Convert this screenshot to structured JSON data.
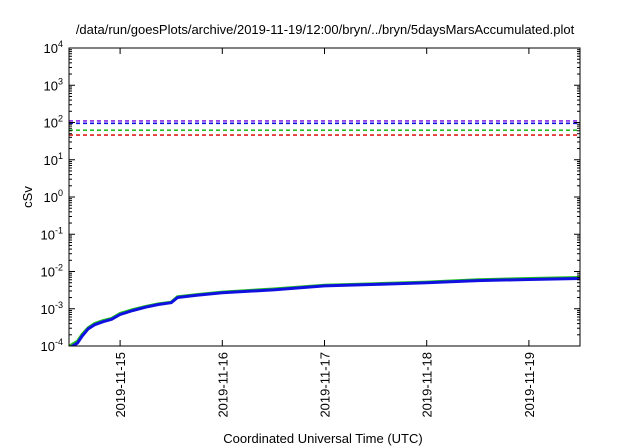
{
  "chart_data": {
    "type": "line",
    "title": "/data/run/goesPlots/archive/2019-11-19/12:00/bryn/../bryn/5daysMarsAccumulated.plot",
    "xlabel": "Coordinated Universal Time (UTC)",
    "ylabel": "cSv",
    "y_scale": "log",
    "ylim": [
      0.0001,
      10000
    ],
    "y_ticks": [
      {
        "value": 0.0001,
        "base": "10",
        "exp": "-4"
      },
      {
        "value": 0.001,
        "base": "10",
        "exp": "-3"
      },
      {
        "value": 0.01,
        "base": "10",
        "exp": "-2"
      },
      {
        "value": 0.1,
        "base": "10",
        "exp": "-1"
      },
      {
        "value": 1,
        "base": "10",
        "exp": "0"
      },
      {
        "value": 10,
        "base": "10",
        "exp": "1"
      },
      {
        "value": 100,
        "base": "10",
        "exp": "2"
      },
      {
        "value": 1000,
        "base": "10",
        "exp": "3"
      },
      {
        "value": 10000,
        "base": "10",
        "exp": "4"
      }
    ],
    "xlim": [
      "2019-11-14T12:00",
      "2019-11-19T12:00"
    ],
    "x_ticks": [
      {
        "value": "2019-11-15T00:00",
        "label": "2019-11-15"
      },
      {
        "value": "2019-11-16T00:00",
        "label": "2019-11-16"
      },
      {
        "value": "2019-11-17T00:00",
        "label": "2019-11-17"
      },
      {
        "value": "2019-11-18T00:00",
        "label": "2019-11-18"
      },
      {
        "value": "2019-11-19T00:00",
        "label": "2019-11-19"
      }
    ],
    "grid": false,
    "legend": "none",
    "thresholds": [
      {
        "value": 110,
        "color": "#8a2be2",
        "style": "dashed"
      },
      {
        "value": 95,
        "color": "#1010e0",
        "style": "dashed"
      },
      {
        "value": 62,
        "color": "#20c020",
        "style": "dashed"
      },
      {
        "value": 46,
        "color": "#e02020",
        "style": "dashed"
      }
    ],
    "series": [
      {
        "color": "#20c020",
        "points": [
          [
            "2019-11-14T12:10",
            0.0001
          ],
          [
            "2019-11-14T14:00",
            0.000135
          ],
          [
            "2019-11-14T15:00",
            0.0002
          ],
          [
            "2019-11-14T16:30",
            0.00031
          ],
          [
            "2019-11-14T18:00",
            0.0004
          ],
          [
            "2019-11-14T20:00",
            0.00048
          ],
          [
            "2019-11-14T22:00",
            0.00055
          ],
          [
            "2019-11-15T00:00",
            0.00075
          ],
          [
            "2019-11-15T03:00",
            0.00095
          ],
          [
            "2019-11-15T06:00",
            0.00115
          ],
          [
            "2019-11-15T09:00",
            0.00135
          ],
          [
            "2019-11-15T12:00",
            0.0015
          ],
          [
            "2019-11-15T13:30",
            0.0021
          ],
          [
            "2019-11-15T18:00",
            0.0024
          ],
          [
            "2019-11-16T00:00",
            0.0028
          ],
          [
            "2019-11-16T12:00",
            0.0034
          ],
          [
            "2019-11-17T00:00",
            0.0043
          ],
          [
            "2019-11-17T12:00",
            0.0047
          ],
          [
            "2019-11-18T00:00",
            0.0052
          ],
          [
            "2019-11-18T12:00",
            0.006
          ],
          [
            "2019-11-19T00:00",
            0.0065
          ],
          [
            "2019-11-19T12:00",
            0.0069
          ]
        ]
      },
      {
        "color": "#1010e0",
        "points": [
          [
            "2019-11-14T12:10",
            9e-05
          ],
          [
            "2019-11-14T14:00",
            0.00012
          ],
          [
            "2019-11-14T15:00",
            0.00018
          ],
          [
            "2019-11-14T16:30",
            0.00029
          ],
          [
            "2019-11-14T18:00",
            0.00037
          ],
          [
            "2019-11-14T20:00",
            0.00045
          ],
          [
            "2019-11-14T22:00",
            0.00052
          ],
          [
            "2019-11-15T00:00",
            0.0007
          ],
          [
            "2019-11-15T03:00",
            0.0009
          ],
          [
            "2019-11-15T06:00",
            0.0011
          ],
          [
            "2019-11-15T09:00",
            0.0013
          ],
          [
            "2019-11-15T12:00",
            0.00145
          ],
          [
            "2019-11-15T13:30",
            0.002
          ],
          [
            "2019-11-15T18:00",
            0.0023
          ],
          [
            "2019-11-16T00:00",
            0.0027
          ],
          [
            "2019-11-16T12:00",
            0.0032
          ],
          [
            "2019-11-17T00:00",
            0.0041
          ],
          [
            "2019-11-17T12:00",
            0.0045
          ],
          [
            "2019-11-18T00:00",
            0.005
          ],
          [
            "2019-11-18T12:00",
            0.0057
          ],
          [
            "2019-11-19T00:00",
            0.0061
          ],
          [
            "2019-11-19T12:00",
            0.0065
          ]
        ]
      }
    ]
  }
}
